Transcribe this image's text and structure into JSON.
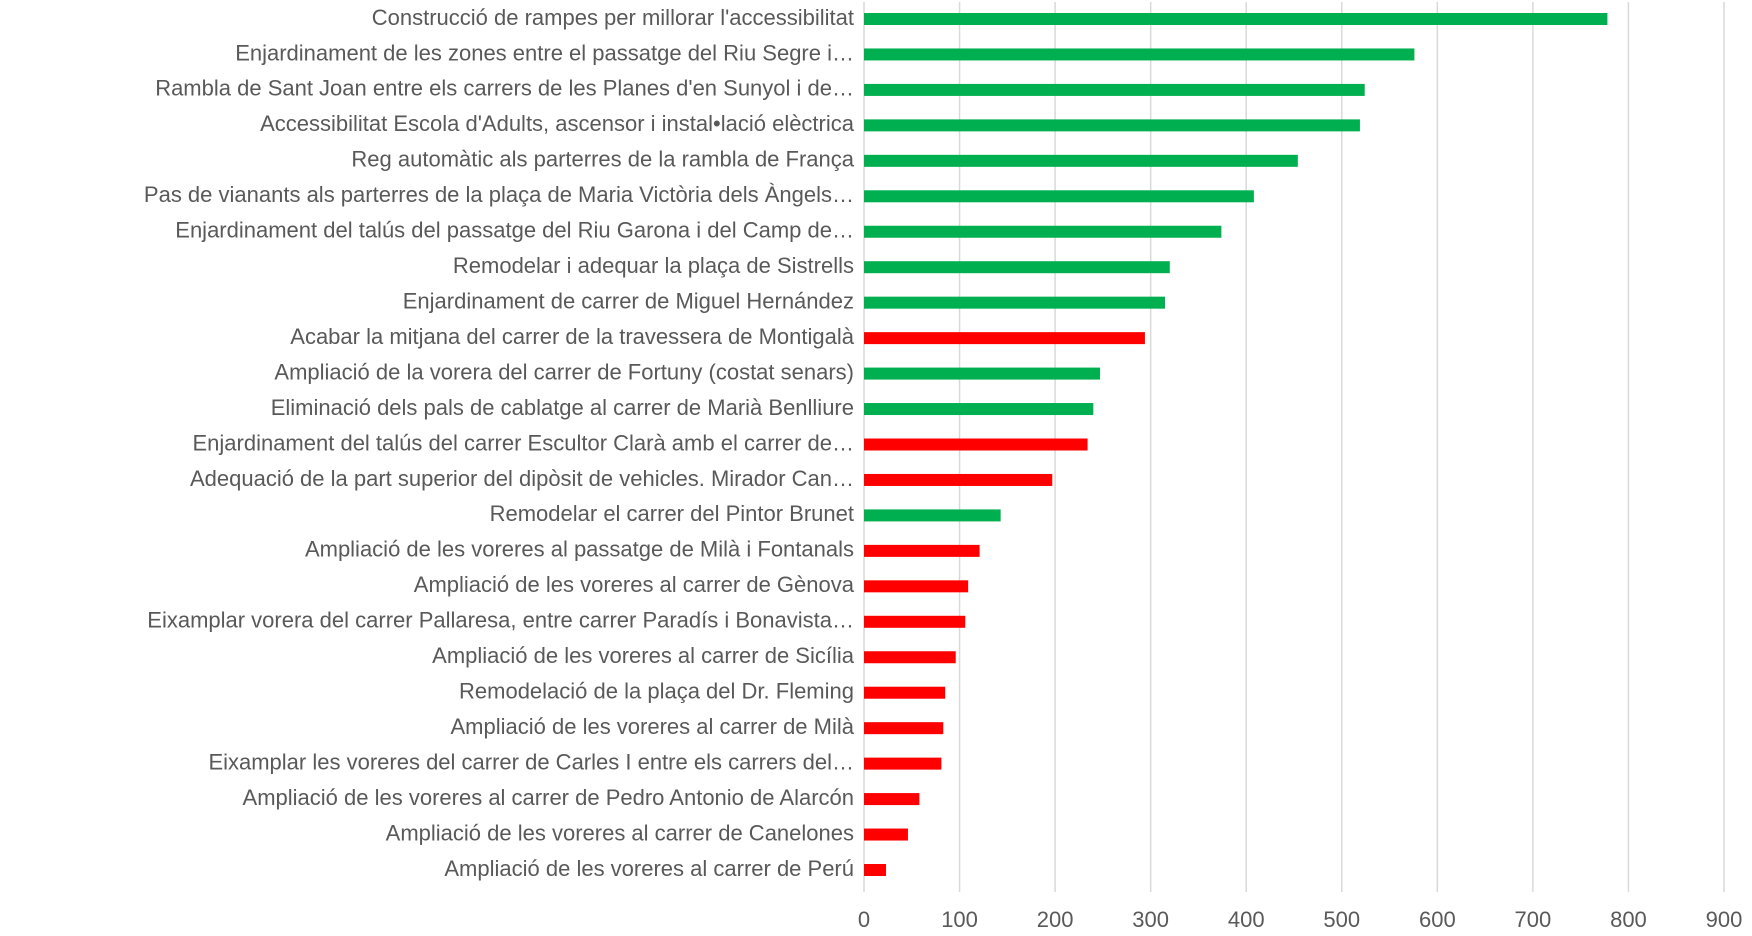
{
  "chart_data": {
    "type": "barh",
    "categories": [
      "Construcció de rampes per millorar l'accessibilitat",
      "Enjardinament de les zones entre el passatge del Riu Segre i…",
      "Rambla de Sant Joan entre els carrers de les Planes d'en Sunyol i de…",
      "Accessibilitat Escola d'Adults, ascensor i instal•lació elèctrica",
      "Reg automàtic als parterres de la rambla de França",
      "Pas de vianants als parterres de la plaça de Maria Victòria dels Àngels…",
      "Enjardinament del talús del passatge del Riu Garona i del Camp de…",
      "Remodelar i adequar la plaça de Sistrells",
      "Enjardinament de carrer de Miguel Hernández",
      "Acabar la mitjana del carrer de la travessera de Montigalà",
      "Ampliació de la vorera del carrer de Fortuny (costat senars)",
      "Eliminació dels pals de cablatge al carrer de Marià Benlliure",
      "Enjardinament del talús del carrer Escultor Clarà amb el carrer de…",
      "Adequació de la part superior del dipòsit de vehicles. Mirador Can…",
      "Remodelar el carrer del Pintor Brunet",
      "Ampliació de les voreres al passatge de Milà i Fontanals",
      "Ampliació de les voreres al carrer  de Gènova",
      "Eixamplar vorera del carrer Pallaresa, entre carrer Paradís i Bonavista…",
      "Ampliació de les voreres al carrer de Sicília",
      "Remodelació de la plaça del Dr. Fleming",
      "Ampliació de les voreres al carrer de Milà",
      "Eixamplar les voreres del carrer de Carles I entre els carrers del…",
      "Ampliació de les voreres al carrer de Pedro Antonio de Alarcón",
      "Ampliació de les voreres al carrer de Canelones",
      "Ampliació de les voreres al carrer de Perú"
    ],
    "values": [
      778,
      576,
      524,
      519,
      454,
      408,
      374,
      320,
      315,
      294,
      247,
      240,
      234,
      197,
      143,
      121,
      109,
      106,
      96,
      85,
      83,
      81,
      58,
      46,
      23
    ],
    "colors": [
      "#00b050",
      "#00b050",
      "#00b050",
      "#00b050",
      "#00b050",
      "#00b050",
      "#00b050",
      "#00b050",
      "#00b050",
      "#ff0000",
      "#00b050",
      "#00b050",
      "#ff0000",
      "#ff0000",
      "#00b050",
      "#ff0000",
      "#ff0000",
      "#ff0000",
      "#ff0000",
      "#ff0000",
      "#ff0000",
      "#ff0000",
      "#ff0000",
      "#ff0000",
      "#ff0000"
    ],
    "xlim": [
      0,
      900
    ],
    "xticks": [
      0,
      100,
      200,
      300,
      400,
      500,
      600,
      700,
      800,
      900
    ],
    "grid": true
  }
}
